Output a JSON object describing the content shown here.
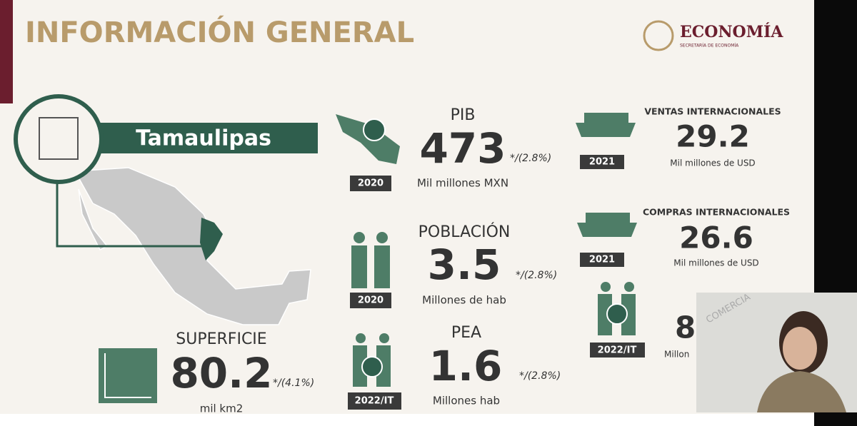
{
  "header": {
    "title": "INFORMACIÓN GENERAL",
    "logo_text": "ECONOMÍA",
    "logo_subtitle": "SECRETARÍA DE ECONOMÍA"
  },
  "state": "Tamaulipas",
  "indicators": {
    "pib": {
      "label": "PIB",
      "year": "2020",
      "value": 473,
      "growth": "*/(2.8%)",
      "unit": "Mil millones MXN"
    },
    "poblacion": {
      "label": "POBLACIÓN",
      "year": "2020",
      "value": 3.5,
      "growth": "*/(2.8%)",
      "unit": "Millones de hab"
    },
    "pea": {
      "label": "PEA",
      "year": "2022/IT",
      "value": 1.6,
      "growth": "*/(2.8%)",
      "unit": "Millones hab"
    },
    "superficie": {
      "label": "SUPERFICIE",
      "value": 80.2,
      "growth": "*/(4.1%)",
      "unit": "mil km2"
    },
    "ventas": {
      "label": "VENTAS INTERNACIONALES",
      "year": "2021",
      "value": 29.2,
      "unit": "Mil millones de USD"
    },
    "compras": {
      "label": "COMPRAS INTERNACIONALES",
      "year": "2021",
      "value": 26.6,
      "unit": "Mil millones de USD"
    },
    "hidden": {
      "year": "2022/IT",
      "value": 8,
      "unit": "Millon"
    }
  },
  "video": {
    "watermark": "COMERCIA"
  }
}
